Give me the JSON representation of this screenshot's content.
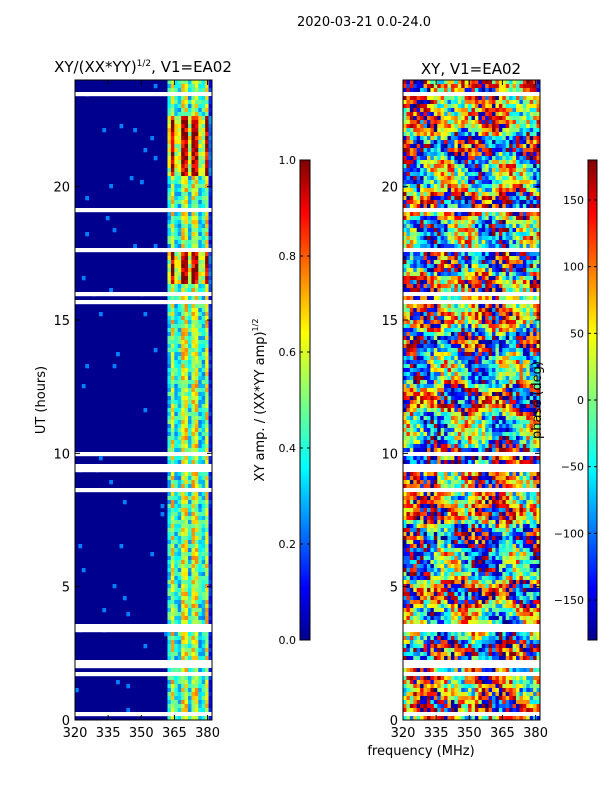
{
  "suptitle": "2020-03-21 0.0-24.0",
  "xlabel": "frequency (MHz)",
  "colors": {
    "low": "#00008f",
    "high": "#800000",
    "line": "#000000",
    "background": "#ffffff"
  },
  "chart_data": [
    {
      "type": "heatmap",
      "title_main": "XY/(XX*YY)",
      "title_sup": "1/2",
      "title_tail": ", V1=EA02",
      "ylabel": "UT (hours)",
      "xlim": [
        320,
        382
      ],
      "ylim": [
        0,
        24
      ],
      "xticks": [
        320,
        335,
        350,
        365,
        380
      ],
      "yticks": [
        0,
        5,
        10,
        15,
        20
      ],
      "value_range": [
        0,
        1
      ],
      "description": "normalized XY amplitude; mostly near 0 below 362 MHz, elevated (0.3-0.9) in 362-382 MHz band, strongest near 16.5-17.5 h and 20.5-22.5 h"
    },
    {
      "type": "heatmap",
      "title": "XY, V1=EA02",
      "ylabel": "",
      "xlim": [
        320,
        382
      ],
      "ylim": [
        0,
        24
      ],
      "xticks": [
        320,
        335,
        350,
        365,
        380
      ],
      "yticks": [
        0,
        5,
        10,
        15,
        20
      ],
      "value_range": [
        -180,
        180
      ],
      "description": "XY phase in degrees, noisy across full band"
    }
  ],
  "colorbars": [
    {
      "label_main": "XY amp. / (XX*YY amp)",
      "label_sup": "1/2",
      "range": [
        0,
        1
      ],
      "ticks": [
        "0.0",
        "0.2",
        "0.4",
        "0.6",
        "0.8",
        "1.0"
      ],
      "tick_values": [
        0,
        0.2,
        0.4,
        0.6,
        0.8,
        1.0
      ]
    },
    {
      "label": "phase (deg)",
      "range": [
        -180,
        180
      ],
      "ticks": [
        "−150",
        "−100",
        "−50",
        "0",
        "50",
        "100",
        "150"
      ],
      "tick_values": [
        -150,
        -100,
        -50,
        0,
        50,
        100,
        150
      ]
    }
  ]
}
